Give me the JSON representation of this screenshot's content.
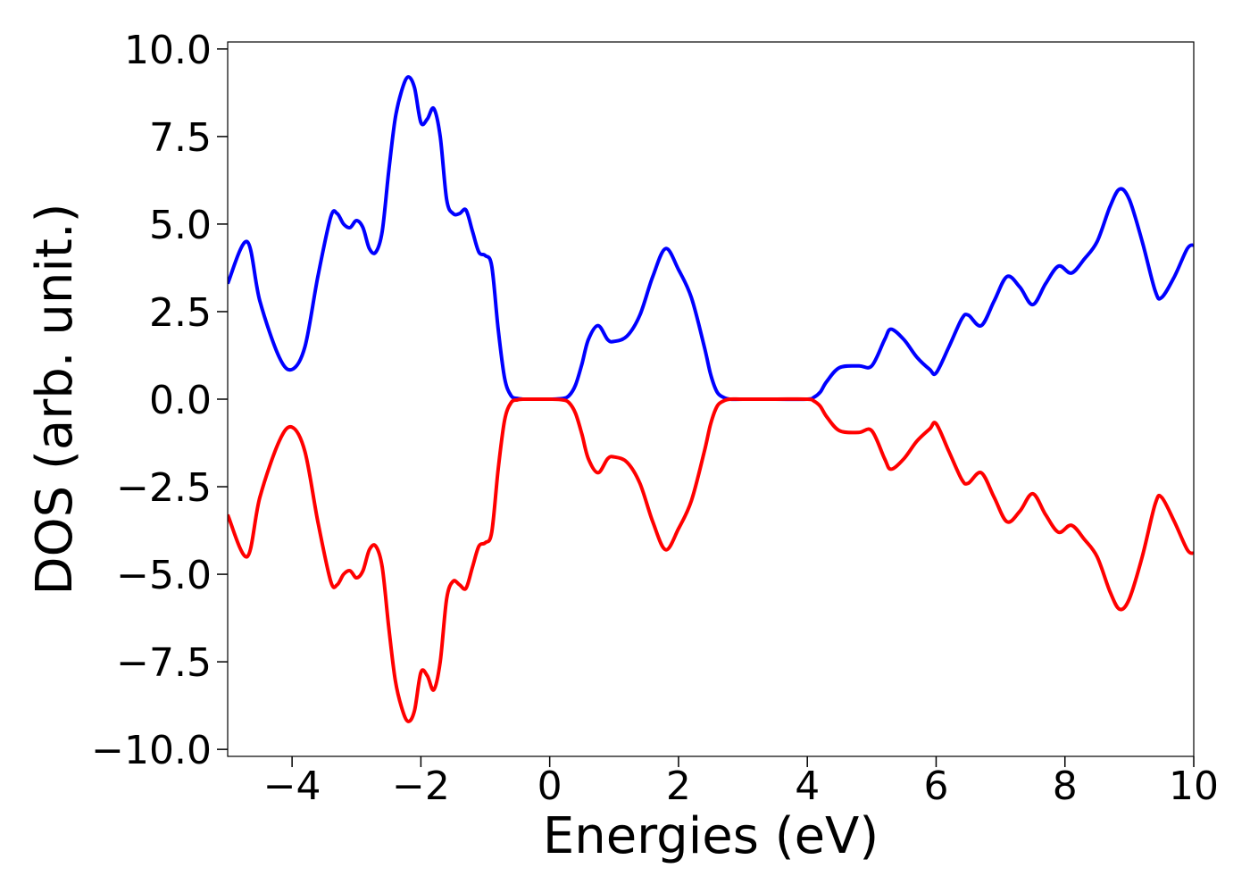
{
  "chart_data": {
    "type": "line",
    "title": "",
    "xlabel": "Energies (eV)",
    "ylabel": "DOS (arb. unit.)",
    "xlim": [
      -5,
      10
    ],
    "ylim": [
      -10.2,
      10.2
    ],
    "xticks": [
      -4,
      -2,
      0,
      2,
      4,
      6,
      8,
      10
    ],
    "xtick_labels": [
      "−4",
      "−2",
      "0",
      "2",
      "4",
      "6",
      "8",
      "10"
    ],
    "yticks": [
      -10,
      -7.5,
      -5,
      -2.5,
      0,
      2.5,
      5,
      7.5,
      10
    ],
    "ytick_labels": [
      "−10.0",
      "−7.5",
      "−5.0",
      "−2.5",
      "0.0",
      "2.5",
      "5.0",
      "7.5",
      "10.0"
    ],
    "grid": false,
    "legend": "none",
    "series": [
      {
        "color": "#0000ff",
        "x": [
          -5,
          -4.7,
          -4.5,
          -4.2,
          -4.0,
          -3.8,
          -3.6,
          -3.4,
          -3.3,
          -3.2,
          -3.1,
          -3.0,
          -2.9,
          -2.8,
          -2.7,
          -2.6,
          -2.5,
          -2.4,
          -2.3,
          -2.2,
          -2.1,
          -2.0,
          -1.9,
          -1.8,
          -1.7,
          -1.6,
          -1.5,
          -1.4,
          -1.3,
          -1.2,
          -1.1,
          -1.0,
          -0.9,
          -0.8,
          -0.7,
          -0.6,
          -0.5,
          -0.4,
          -0.3,
          -0.2,
          0.0,
          0.2,
          0.3,
          0.4,
          0.5,
          0.6,
          0.75,
          0.9,
          1.0,
          1.2,
          1.4,
          1.6,
          1.8,
          2.0,
          2.2,
          2.4,
          2.5,
          2.6,
          2.7,
          2.8,
          3.0,
          3.5,
          4.0,
          4.1,
          4.2,
          4.3,
          4.5,
          4.8,
          5.0,
          5.2,
          5.3,
          5.5,
          5.7,
          5.9,
          6.0,
          6.2,
          6.4,
          6.5,
          6.7,
          6.9,
          7.1,
          7.3,
          7.5,
          7.7,
          7.9,
          8.1,
          8.3,
          8.5,
          8.7,
          8.85,
          9.0,
          9.2,
          9.4,
          9.5,
          9.7,
          9.9,
          10.0
        ],
        "values": [
          3.3,
          4.5,
          2.8,
          1.2,
          0.85,
          1.5,
          3.5,
          5.2,
          5.3,
          5.0,
          4.9,
          5.1,
          4.9,
          4.3,
          4.2,
          4.8,
          6.5,
          8.0,
          8.8,
          9.2,
          8.9,
          7.9,
          8.0,
          8.3,
          7.5,
          5.7,
          5.3,
          5.3,
          5.4,
          4.8,
          4.2,
          4.1,
          3.8,
          2.0,
          0.6,
          0.1,
          0.02,
          0.0,
          0.0,
          0.0,
          0.0,
          0.02,
          0.1,
          0.4,
          1.0,
          1.7,
          2.1,
          1.7,
          1.65,
          1.8,
          2.4,
          3.5,
          4.3,
          3.7,
          2.9,
          1.5,
          0.7,
          0.2,
          0.05,
          0.0,
          0.0,
          0.0,
          0.0,
          0.05,
          0.2,
          0.5,
          0.9,
          0.95,
          0.95,
          1.7,
          2.0,
          1.7,
          1.2,
          0.85,
          0.75,
          1.5,
          2.3,
          2.4,
          2.1,
          2.8,
          3.5,
          3.2,
          2.7,
          3.3,
          3.8,
          3.6,
          4.0,
          4.5,
          5.5,
          6.0,
          5.7,
          4.5,
          3.1,
          2.9,
          3.5,
          4.3,
          4.4
        ]
      },
      {
        "color": "#ff0000",
        "x": [
          -5,
          -4.7,
          -4.5,
          -4.2,
          -4.0,
          -3.8,
          -3.6,
          -3.4,
          -3.3,
          -3.2,
          -3.1,
          -3.0,
          -2.9,
          -2.8,
          -2.7,
          -2.6,
          -2.5,
          -2.4,
          -2.3,
          -2.2,
          -2.1,
          -2.0,
          -1.9,
          -1.8,
          -1.7,
          -1.6,
          -1.5,
          -1.4,
          -1.3,
          -1.2,
          -1.1,
          -1.0,
          -0.9,
          -0.8,
          -0.7,
          -0.6,
          -0.5,
          -0.4,
          -0.3,
          -0.2,
          0.0,
          0.2,
          0.3,
          0.4,
          0.5,
          0.6,
          0.75,
          0.9,
          1.0,
          1.2,
          1.4,
          1.6,
          1.8,
          2.0,
          2.2,
          2.4,
          2.5,
          2.6,
          2.7,
          2.8,
          3.0,
          3.5,
          4.0,
          4.1,
          4.2,
          4.3,
          4.5,
          4.8,
          5.0,
          5.2,
          5.3,
          5.5,
          5.7,
          5.9,
          6.0,
          6.2,
          6.4,
          6.5,
          6.7,
          6.9,
          7.1,
          7.3,
          7.5,
          7.7,
          7.9,
          8.1,
          8.3,
          8.5,
          8.7,
          8.85,
          9.0,
          9.2,
          9.4,
          9.5,
          9.7,
          9.9,
          10.0
        ],
        "values": [
          -3.3,
          -4.5,
          -2.8,
          -1.2,
          -0.8,
          -1.5,
          -3.5,
          -5.2,
          -5.3,
          -5.0,
          -4.9,
          -5.1,
          -4.9,
          -4.3,
          -4.2,
          -4.8,
          -6.5,
          -8.0,
          -8.8,
          -9.2,
          -8.9,
          -7.8,
          -7.9,
          -8.3,
          -7.5,
          -5.7,
          -5.2,
          -5.3,
          -5.4,
          -4.8,
          -4.2,
          -4.1,
          -3.8,
          -2.0,
          -0.6,
          -0.1,
          -0.02,
          0.0,
          0.0,
          0.0,
          0.0,
          -0.02,
          -0.1,
          -0.4,
          -1.0,
          -1.7,
          -2.1,
          -1.7,
          -1.65,
          -1.8,
          -2.4,
          -3.5,
          -4.3,
          -3.7,
          -2.9,
          -1.5,
          -0.7,
          -0.2,
          -0.05,
          0.0,
          0.0,
          0.0,
          0.0,
          -0.05,
          -0.2,
          -0.5,
          -0.9,
          -0.95,
          -0.9,
          -1.7,
          -2.0,
          -1.7,
          -1.2,
          -0.85,
          -0.7,
          -1.5,
          -2.3,
          -2.4,
          -2.1,
          -2.8,
          -3.5,
          -3.2,
          -2.7,
          -3.3,
          -3.8,
          -3.6,
          -4.0,
          -4.5,
          -5.5,
          -6.0,
          -5.7,
          -4.5,
          -3.0,
          -2.8,
          -3.5,
          -4.3,
          -4.4
        ]
      }
    ]
  }
}
